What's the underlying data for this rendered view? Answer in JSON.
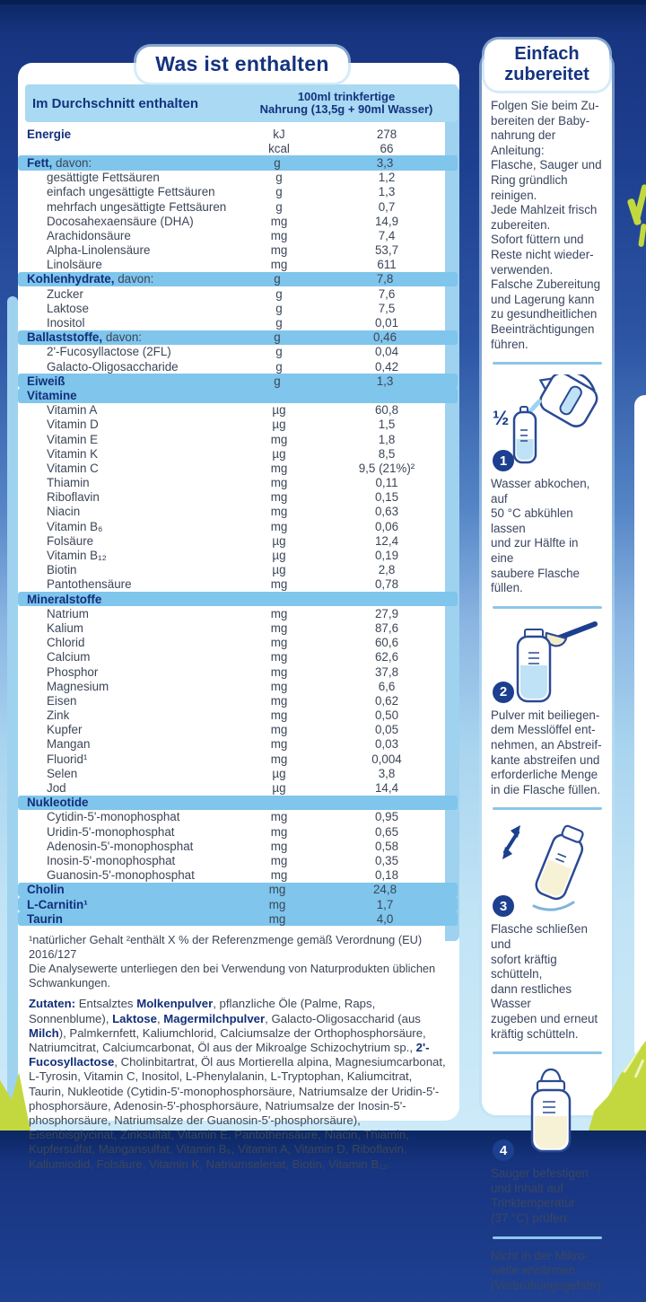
{
  "colors": {
    "navy": "#14337f",
    "band_blue": "#7fc5ec",
    "header_blue": "#a9d9f3",
    "panel_white": "#ffffff",
    "grass_green": "#c3d83e",
    "divider_blue": "#8cc6e8"
  },
  "left_panel": {
    "title": "Was ist enthalten",
    "table": {
      "header": {
        "col_label": "Im Durchschnitt enthalten",
        "col_value": "100ml trinkfertige\nNahrung (13,5g + 90ml Wasser)"
      },
      "rows": [
        {
          "t": "energy",
          "l": "Energie",
          "u": "kJ",
          "v": "278"
        },
        {
          "t": "cont",
          "l": "",
          "u": "kcal",
          "v": "66"
        },
        {
          "t": "sec",
          "l": "Fett,",
          "s": " davon:",
          "u": "g",
          "v": "3,3"
        },
        {
          "t": "item",
          "l": "gesättigte Fettsäuren",
          "u": "g",
          "v": "1,2"
        },
        {
          "t": "item",
          "l": "einfach ungesättigte Fettsäuren",
          "u": "g",
          "v": "1,3"
        },
        {
          "t": "item",
          "l": "mehrfach ungesättigte Fettsäuren",
          "u": "g",
          "v": "0,7"
        },
        {
          "t": "item",
          "l": "Docosahexaensäure (DHA)",
          "u": "mg",
          "v": "14,9"
        },
        {
          "t": "item",
          "l": "Arachidonsäure",
          "u": "mg",
          "v": "7,4"
        },
        {
          "t": "item",
          "l": "Alpha-Linolensäure",
          "u": "mg",
          "v": "53,7"
        },
        {
          "t": "item",
          "l": "Linolsäure",
          "u": "mg",
          "v": "611"
        },
        {
          "t": "sec",
          "l": "Kohlenhydrate,",
          "s": " davon:",
          "u": "g",
          "v": "7,8"
        },
        {
          "t": "item",
          "l": "Zucker",
          "u": "g",
          "v": "7,6"
        },
        {
          "t": "item",
          "l": "Laktose",
          "u": "g",
          "v": "7,5"
        },
        {
          "t": "item",
          "l": "Inositol",
          "u": "g",
          "v": "0,01"
        },
        {
          "t": "sec",
          "l": "Ballaststoffe,",
          "s": " davon:",
          "u": "g",
          "v": "0,46"
        },
        {
          "t": "item",
          "l": "2'-Fucosyllactose (2FL)",
          "u": "g",
          "v": "0,04"
        },
        {
          "t": "item",
          "l": "Galacto-Oligosaccharide",
          "u": "g",
          "v": "0,42"
        },
        {
          "t": "sec",
          "l": "Eiweiß",
          "s": "",
          "u": "g",
          "v": "1,3"
        },
        {
          "t": "grp",
          "l": "Vitamine",
          "u": "",
          "v": ""
        },
        {
          "t": "item",
          "l": "Vitamin A",
          "u": "µg",
          "v": "60,8"
        },
        {
          "t": "item",
          "l": "Vitamin D",
          "u": "µg",
          "v": "1,5"
        },
        {
          "t": "item",
          "l": "Vitamin E",
          "u": "mg",
          "v": "1,8"
        },
        {
          "t": "item",
          "l": "Vitamin K",
          "u": "µg",
          "v": "8,5"
        },
        {
          "t": "item",
          "l": "Vitamin C",
          "u": "mg",
          "v": "9,5 (21%)²"
        },
        {
          "t": "item",
          "l": "Thiamin",
          "u": "mg",
          "v": "0,11"
        },
        {
          "t": "item",
          "l": "Riboflavin",
          "u": "mg",
          "v": "0,15"
        },
        {
          "t": "item",
          "l": "Niacin",
          "u": "mg",
          "v": "0,63"
        },
        {
          "t": "item",
          "l": "Vitamin B₆",
          "u": "mg",
          "v": "0,06"
        },
        {
          "t": "item",
          "l": "Folsäure",
          "u": "µg",
          "v": "12,4"
        },
        {
          "t": "item",
          "l": "Vitamin B₁₂",
          "u": "µg",
          "v": "0,19"
        },
        {
          "t": "item",
          "l": "Biotin",
          "u": "µg",
          "v": "2,8"
        },
        {
          "t": "item",
          "l": "Pantothensäure",
          "u": "mg",
          "v": "0,78"
        },
        {
          "t": "grp",
          "l": "Mineralstoffe",
          "u": "",
          "v": ""
        },
        {
          "t": "item",
          "l": "Natrium",
          "u": "mg",
          "v": "27,9"
        },
        {
          "t": "item",
          "l": "Kalium",
          "u": "mg",
          "v": "87,6"
        },
        {
          "t": "item",
          "l": "Chlorid",
          "u": "mg",
          "v": "60,6"
        },
        {
          "t": "item",
          "l": "Calcium",
          "u": "mg",
          "v": "62,6"
        },
        {
          "t": "item",
          "l": "Phosphor",
          "u": "mg",
          "v": "37,8"
        },
        {
          "t": "item",
          "l": "Magnesium",
          "u": "mg",
          "v": "6,6"
        },
        {
          "t": "item",
          "l": "Eisen",
          "u": "mg",
          "v": "0,62"
        },
        {
          "t": "item",
          "l": "Zink",
          "u": "mg",
          "v": "0,50"
        },
        {
          "t": "item",
          "l": "Kupfer",
          "u": "mg",
          "v": "0,05"
        },
        {
          "t": "item",
          "l": "Mangan",
          "u": "mg",
          "v": "0,03"
        },
        {
          "t": "item",
          "l": "Fluorid¹",
          "u": "mg",
          "v": "0,004"
        },
        {
          "t": "item",
          "l": "Selen",
          "u": "µg",
          "v": "3,8"
        },
        {
          "t": "item",
          "l": "Jod",
          "u": "µg",
          "v": "14,4"
        },
        {
          "t": "grp",
          "l": "Nukleotide",
          "u": "",
          "v": ""
        },
        {
          "t": "item",
          "l": "Cytidin-5'-monophosphat",
          "u": "mg",
          "v": "0,95"
        },
        {
          "t": "item",
          "l": "Uridin-5'-monophosphat",
          "u": "mg",
          "v": "0,65"
        },
        {
          "t": "item",
          "l": "Adenosin-5'-monophosphat",
          "u": "mg",
          "v": "0,58"
        },
        {
          "t": "item",
          "l": "Inosin-5'-monophosphat",
          "u": "mg",
          "v": "0,35"
        },
        {
          "t": "item",
          "l": "Guanosin-5'-monophosphat",
          "u": "mg",
          "v": "0,18"
        },
        {
          "t": "sec",
          "l": "Cholin",
          "s": "",
          "u": "mg",
          "v": "24,8"
        },
        {
          "t": "sec",
          "l": "L-Carnitin¹",
          "s": "",
          "u": "mg",
          "v": "1,7"
        },
        {
          "t": "sec",
          "l": "Taurin",
          "s": "",
          "u": "mg",
          "v": "4,0"
        }
      ]
    },
    "footnote": {
      "line1": "¹natürlicher Gehalt  ²enthält X % der Referenzmenge gemäß Verordnung (EU) 2016/127",
      "line2": "Die Analysewerte unterliegen den bei Verwendung von Naturprodukten üblichen Schwankungen."
    },
    "ingredients": {
      "segments": [
        {
          "text": "Zutaten: ",
          "bold": true
        },
        {
          "text": "Entsalztes ",
          "bold": false
        },
        {
          "text": "Molkenpulver",
          "bold": true
        },
        {
          "text": ", pflanzliche Öle (Palme, Raps, Sonnenblume), ",
          "bold": false
        },
        {
          "text": "Laktose",
          "bold": true
        },
        {
          "text": ", ",
          "bold": false
        },
        {
          "text": "Magermilchpulver",
          "bold": true
        },
        {
          "text": ", Galacto-Oligosaccharid (aus ",
          "bold": false
        },
        {
          "text": "Milch",
          "bold": true
        },
        {
          "text": "), Palmkernfett, Kaliumchlorid, Calciumsalze der Orthophosphorsäure, Natriumcitrat, Calciumcarbonat, Öl aus der Mikroalge Schizochytrium sp., ",
          "bold": false
        },
        {
          "text": "2'-Fucosyllactose",
          "bold": true
        },
        {
          "text": ", Cholinbitartrat, Öl aus Mortierella alpina, Magnesiumcarbonat, L-Tyrosin, Vitamin C, Inositol, L-Phenylalanin, L-Tryptophan, Kaliumcitrat, Taurin, Nukleotide (Cytidin-5'-monophosphorsäure, Natriumsalze der Uridin-5'-phosphorsäure, Adenosin-5'-phosphorsäure, Natriumsalze der Inosin-5'-phosphorsäure, Natriumsalze der Guanosin-5'-phosphorsäure), Eisenbisglycinat, Zinksulfat, Vitamin E, Pantothensäure, Niacin, Thiamin, Kupfersulfat, Mangansulfat, Vitamin B₆, Vitamin A, Vitamin D, Riboflavin, Kaliumiodid, Folsäure, Vitamin K, Natriumselenat, Biotin, Vitamin B₁₂.",
          "bold": false
        }
      ]
    }
  },
  "prep": {
    "title": "Einfach\nzubereitet",
    "intro": "Folgen Sie beim Zu-\nbereiten der Baby-\nnahrung der Anleitung:\nFlasche, Sauger und\nRing gründlich reinigen.\nJede Mahlzeit frisch\nzubereiten.\nSofort füttern und\nReste nicht wieder-\nverwenden.\nFalsche Zubereitung\nund Lagerung kann\nzu gesundheitlichen\nBeeinträchtigungen\nführen.",
    "half_label": "½",
    "steps": [
      {
        "num": "1",
        "icon": "kettle-pour-icon",
        "text": "Wasser abkochen, auf\n50 °C abkühlen lassen\nund zur Hälfte in eine\nsaubere Flasche füllen."
      },
      {
        "num": "2",
        "icon": "scoop-bottle-icon",
        "text": "Pulver mit beiliegen-\ndem Messlöffel ent-\nnehmen, an Abstreif-\nkante abstreifen und\nerforderliche Menge\nin die Flasche füllen."
      },
      {
        "num": "3",
        "icon": "shake-bottle-icon",
        "text": "Flasche schließen und\nsofort kräftig schütteln,\ndann restliches Wasser\nzugeben und erneut\nkräftig schütteln."
      },
      {
        "num": "4",
        "icon": "feeding-bottle-icon",
        "text": "Sauger befestigen\nund Inhalt auf\nTrinktemperatur\n(37 °C) prüfen."
      }
    ],
    "warning": "Nicht in der Mikro-\nwelle erwärmen\n(Verbrühungsgefahr)."
  }
}
